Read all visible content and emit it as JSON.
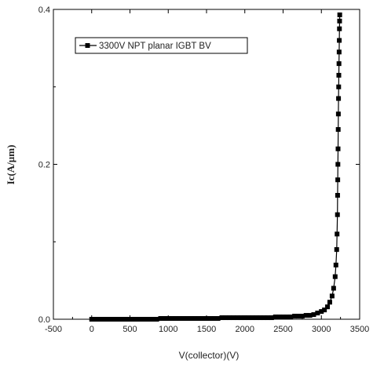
{
  "chart_data": {
    "type": "line",
    "title": "",
    "xlabel": "V(collector)(V)",
    "ylabel": "Ic(A/µm)",
    "xlim": [
      -500,
      3500
    ],
    "ylim": [
      0,
      0.4
    ],
    "x_ticks": [
      -500,
      0,
      500,
      1000,
      1500,
      2000,
      2500,
      3000,
      3500
    ],
    "x_tick_labels": [
      "-500",
      "0",
      "500",
      "1000",
      "1500",
      "2000",
      "2500",
      "3000",
      "3500"
    ],
    "y_ticks": [
      0.0,
      0.2,
      0.4
    ],
    "y_tick_labels": [
      "0.0",
      "0.2",
      "0.4"
    ],
    "legend_position": "top-left",
    "grid": false,
    "series": [
      {
        "name": "3300V NPT planar IGBT BV",
        "color": "#000000",
        "marker": "square",
        "x": [
          0,
          50,
          100,
          150,
          200,
          250,
          300,
          350,
          400,
          450,
          500,
          550,
          600,
          650,
          700,
          750,
          800,
          850,
          900,
          950,
          1000,
          1050,
          1100,
          1150,
          1200,
          1250,
          1300,
          1350,
          1400,
          1450,
          1500,
          1550,
          1600,
          1650,
          1700,
          1750,
          1800,
          1850,
          1900,
          1950,
          2000,
          2050,
          2100,
          2150,
          2200,
          2250,
          2300,
          2350,
          2400,
          2450,
          2500,
          2550,
          2600,
          2650,
          2700,
          2750,
          2800,
          2850,
          2900,
          2950,
          3000,
          3040,
          3080,
          3110,
          3140,
          3160,
          3180,
          3190,
          3200,
          3205,
          3210,
          3212,
          3214,
          3216,
          3218,
          3220,
          3222,
          3224,
          3226,
          3228,
          3230,
          3232,
          3234,
          3236,
          3238,
          3240
        ],
        "y": [
          0.0,
          0.0,
          0.0,
          0.0,
          0.0,
          0.0,
          0.0,
          0.0,
          0.0,
          0.0,
          0.0,
          0.0,
          0.0,
          0.0,
          0.0,
          0.0,
          0.0,
          0.0,
          0.001,
          0.001,
          0.001,
          0.001,
          0.001,
          0.001,
          0.001,
          0.001,
          0.001,
          0.001,
          0.001,
          0.001,
          0.001,
          0.001,
          0.001,
          0.001,
          0.002,
          0.002,
          0.002,
          0.002,
          0.002,
          0.002,
          0.002,
          0.002,
          0.002,
          0.002,
          0.002,
          0.002,
          0.002,
          0.002,
          0.003,
          0.003,
          0.003,
          0.003,
          0.003,
          0.004,
          0.004,
          0.004,
          0.005,
          0.005,
          0.006,
          0.008,
          0.01,
          0.012,
          0.016,
          0.022,
          0.03,
          0.04,
          0.055,
          0.07,
          0.09,
          0.11,
          0.135,
          0.16,
          0.18,
          0.2,
          0.22,
          0.245,
          0.265,
          0.285,
          0.3,
          0.315,
          0.33,
          0.345,
          0.36,
          0.375,
          0.385,
          0.393
        ]
      }
    ]
  }
}
